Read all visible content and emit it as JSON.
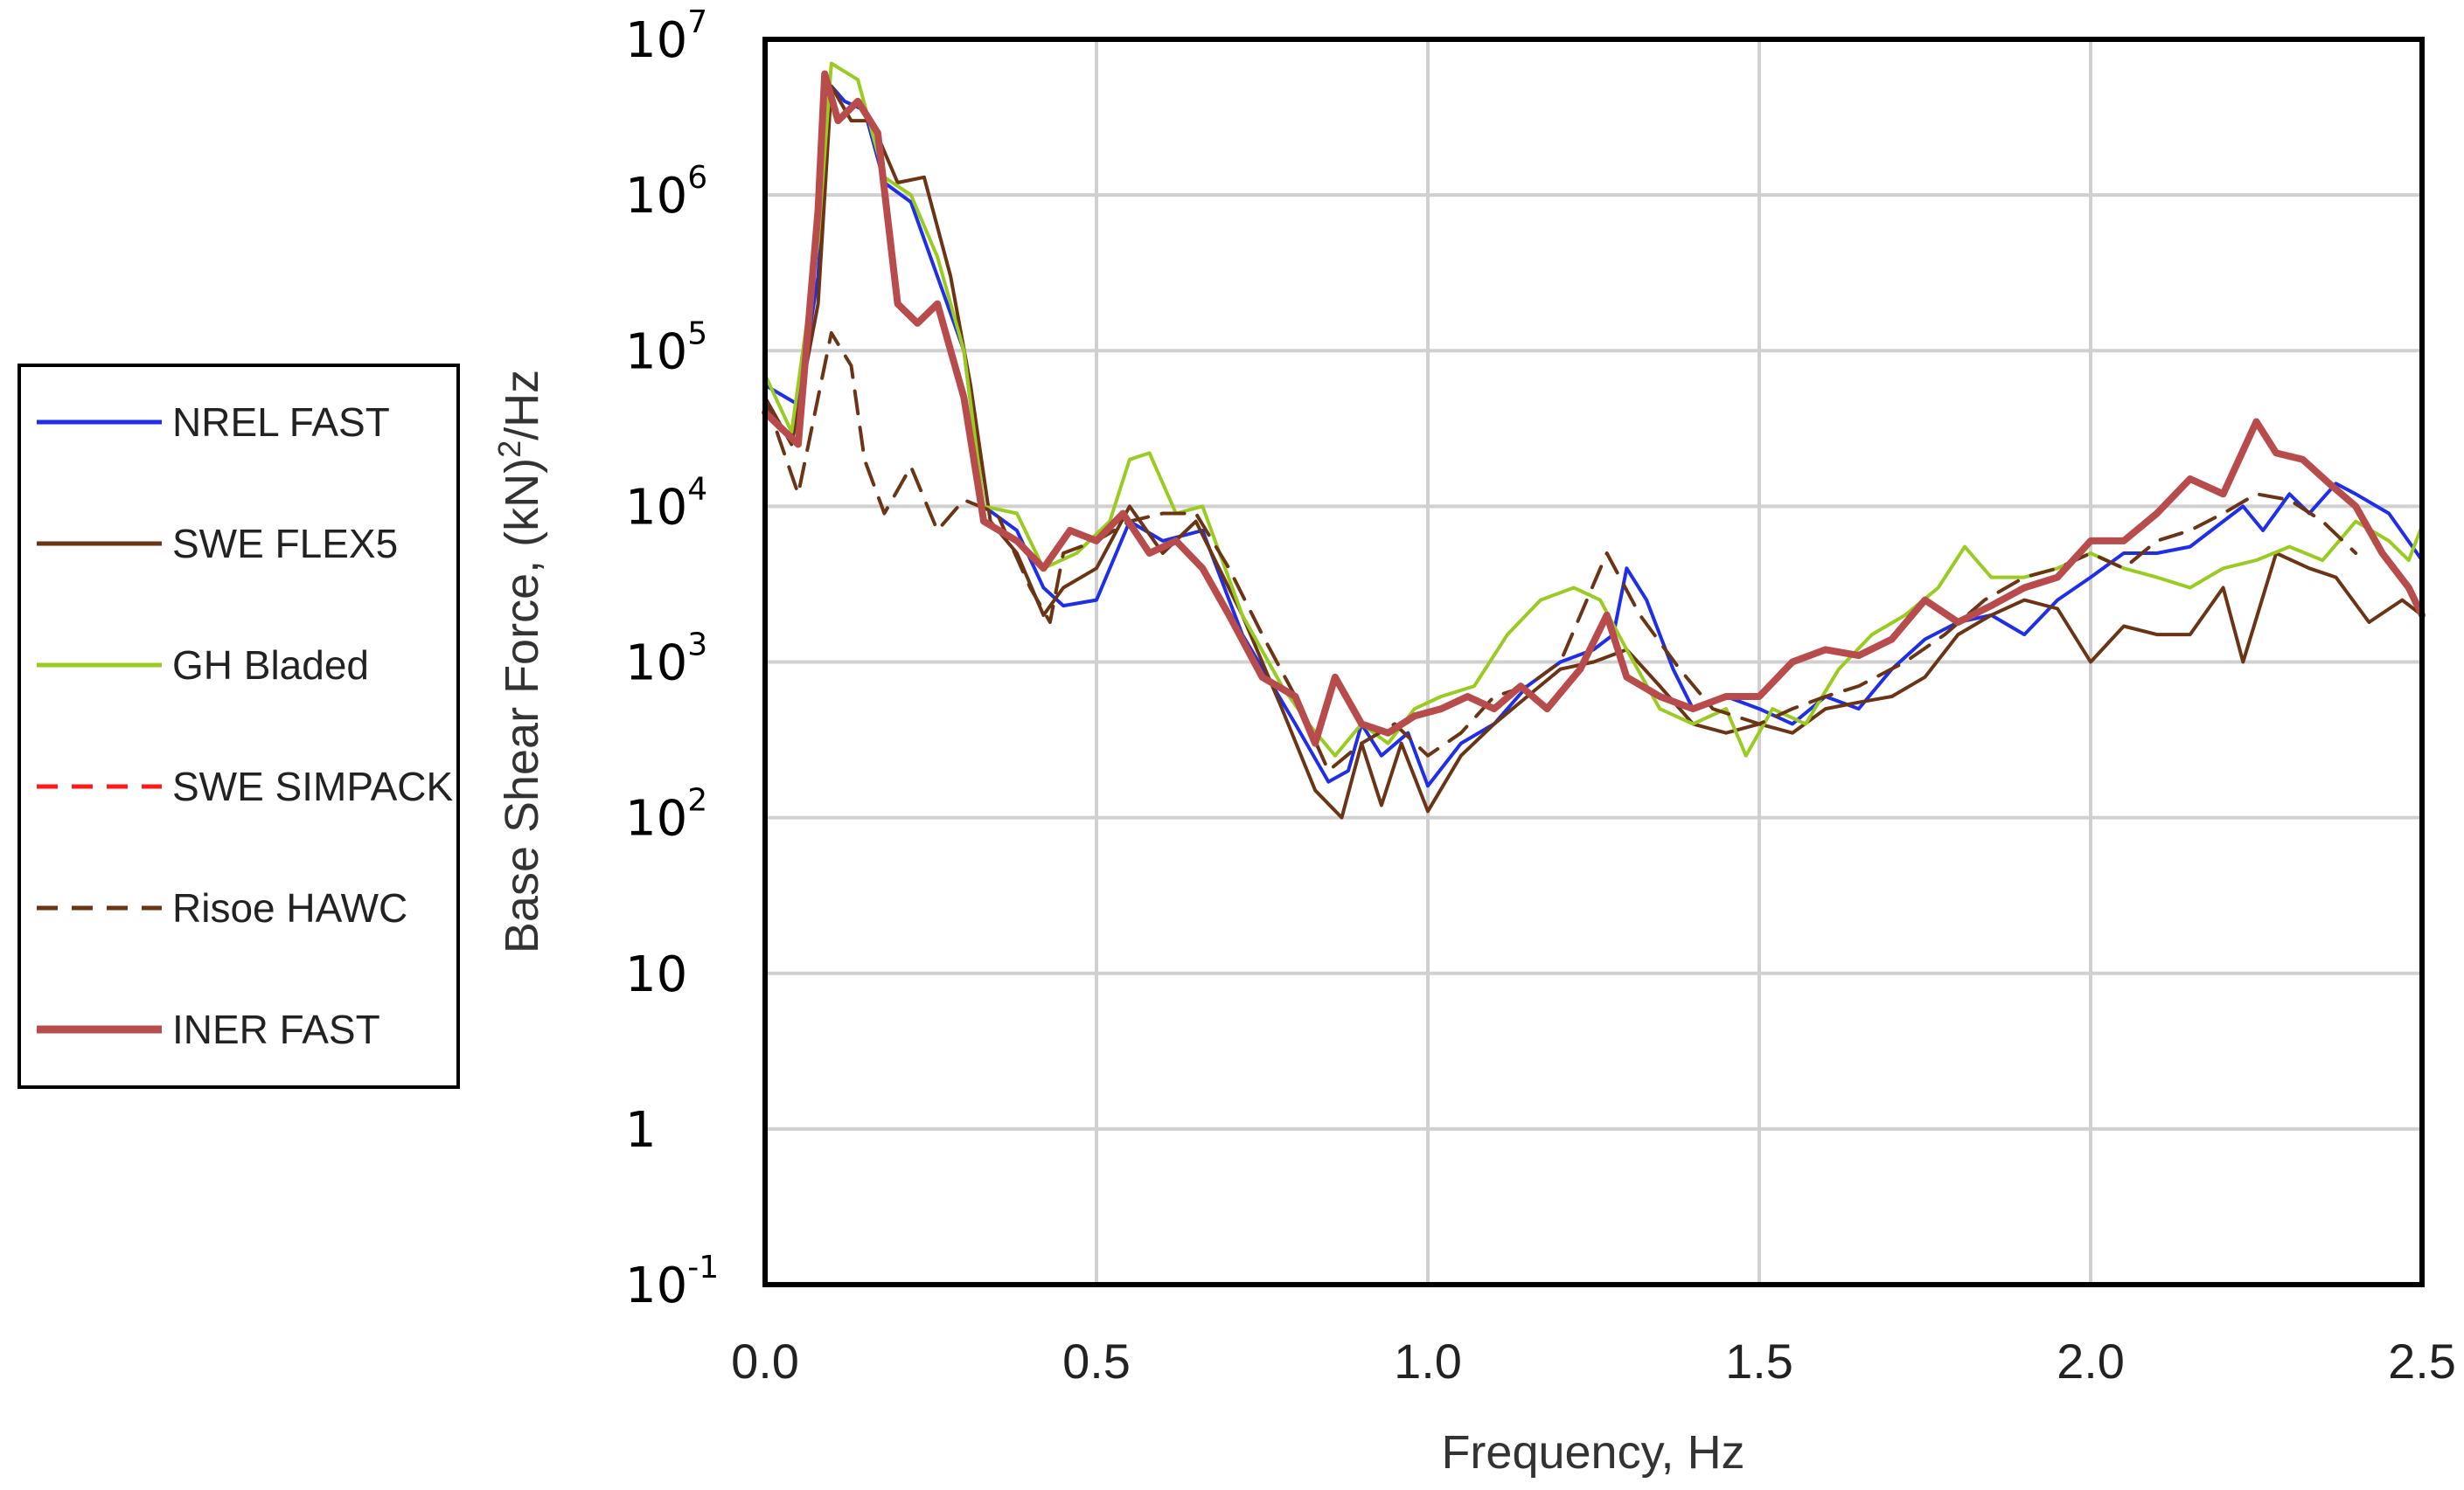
{
  "chart_data": {
    "type": "line",
    "title": "",
    "xlabel": "Frequency, Hz",
    "ylabel": "Base Shear Force, (kN)²/Hz",
    "ylabel_parts": {
      "pre": "Base Shear Force, (kN)",
      "sup": "2",
      "post": "/Hz"
    },
    "xlim": [
      0,
      2.5
    ],
    "ylim": [
      0.1,
      10000000
    ],
    "yscale": "log",
    "grid": true,
    "legend_position": "left",
    "x_ticks": [
      "0.0",
      "0.5",
      "1.0",
      "1.5",
      "2.0",
      "2.5"
    ],
    "y_ticks": [
      {
        "base": "10",
        "exp": "-1"
      },
      {
        "base": "1",
        "exp": ""
      },
      {
        "base": "10",
        "exp": ""
      },
      {
        "base": "10",
        "exp": "2"
      },
      {
        "base": "10",
        "exp": "3"
      },
      {
        "base": "10",
        "exp": "4"
      },
      {
        "base": "10",
        "exp": "5"
      },
      {
        "base": "10",
        "exp": "6"
      },
      {
        "base": "10",
        "exp": "7"
      }
    ],
    "series": [
      {
        "name": "NREL FAST",
        "color": "#1f2ee8",
        "dash": "solid",
        "width": 4,
        "points": [
          [
            0,
            60000
          ],
          [
            0.05,
            45000
          ],
          [
            0.08,
            300000
          ],
          [
            0.1,
            5000000
          ],
          [
            0.12,
            4000000
          ],
          [
            0.15,
            3500000
          ],
          [
            0.18,
            1200000
          ],
          [
            0.22,
            900000
          ],
          [
            0.26,
            300000
          ],
          [
            0.3,
            100000
          ],
          [
            0.33,
            10000
          ],
          [
            0.38,
            7000
          ],
          [
            0.42,
            3000
          ],
          [
            0.45,
            2300
          ],
          [
            0.5,
            2500
          ],
          [
            0.55,
            8000
          ],
          [
            0.6,
            6000
          ],
          [
            0.66,
            7000
          ],
          [
            0.72,
            1500
          ],
          [
            0.8,
            400
          ],
          [
            0.85,
            170
          ],
          [
            0.88,
            200
          ],
          [
            0.9,
            400
          ],
          [
            0.93,
            250
          ],
          [
            0.97,
            350
          ],
          [
            1.0,
            160
          ],
          [
            1.05,
            300
          ],
          [
            1.1,
            400
          ],
          [
            1.15,
            700
          ],
          [
            1.2,
            1000
          ],
          [
            1.25,
            1200
          ],
          [
            1.28,
            1500
          ],
          [
            1.3,
            4000
          ],
          [
            1.33,
            2500
          ],
          [
            1.37,
            900
          ],
          [
            1.4,
            500
          ],
          [
            1.45,
            600
          ],
          [
            1.5,
            500
          ],
          [
            1.55,
            400
          ],
          [
            1.6,
            600
          ],
          [
            1.65,
            500
          ],
          [
            1.7,
            900
          ],
          [
            1.75,
            1400
          ],
          [
            1.8,
            1800
          ],
          [
            1.85,
            2000
          ],
          [
            1.9,
            1500
          ],
          [
            1.95,
            2500
          ],
          [
            2.0,
            3500
          ],
          [
            2.05,
            5000
          ],
          [
            2.1,
            5000
          ],
          [
            2.15,
            5500
          ],
          [
            2.2,
            8000
          ],
          [
            2.23,
            10000
          ],
          [
            2.26,
            7000
          ],
          [
            2.3,
            12000
          ],
          [
            2.33,
            9000
          ],
          [
            2.37,
            14000
          ],
          [
            2.4,
            12000
          ],
          [
            2.45,
            9000
          ],
          [
            2.5,
            4500
          ]
        ]
      },
      {
        "name": "SWE FLEX5",
        "color": "#6b3415",
        "dash": "solid",
        "width": 4,
        "points": [
          [
            0,
            50000
          ],
          [
            0.04,
            25000
          ],
          [
            0.08,
            200000
          ],
          [
            0.1,
            5000000
          ],
          [
            0.13,
            3000000
          ],
          [
            0.16,
            3000000
          ],
          [
            0.2,
            1200000
          ],
          [
            0.24,
            1300000
          ],
          [
            0.28,
            300000
          ],
          [
            0.31,
            60000
          ],
          [
            0.34,
            8000
          ],
          [
            0.38,
            5000
          ],
          [
            0.42,
            2000
          ],
          [
            0.45,
            3000
          ],
          [
            0.5,
            4000
          ],
          [
            0.55,
            10000
          ],
          [
            0.6,
            5000
          ],
          [
            0.65,
            8000
          ],
          [
            0.72,
            2000
          ],
          [
            0.78,
            500
          ],
          [
            0.83,
            150
          ],
          [
            0.87,
            100
          ],
          [
            0.9,
            300
          ],
          [
            0.93,
            120
          ],
          [
            0.96,
            300
          ],
          [
            1.0,
            110
          ],
          [
            1.05,
            250
          ],
          [
            1.1,
            400
          ],
          [
            1.15,
            600
          ],
          [
            1.2,
            900
          ],
          [
            1.25,
            1000
          ],
          [
            1.3,
            1200
          ],
          [
            1.35,
            700
          ],
          [
            1.4,
            400
          ],
          [
            1.45,
            350
          ],
          [
            1.5,
            400
          ],
          [
            1.55,
            350
          ],
          [
            1.6,
            500
          ],
          [
            1.65,
            550
          ],
          [
            1.7,
            600
          ],
          [
            1.75,
            800
          ],
          [
            1.8,
            1500
          ],
          [
            1.85,
            2000
          ],
          [
            1.9,
            2500
          ],
          [
            1.95,
            2200
          ],
          [
            2.0,
            1000
          ],
          [
            2.05,
            1700
          ],
          [
            2.1,
            1500
          ],
          [
            2.15,
            1500
          ],
          [
            2.2,
            3000
          ],
          [
            2.23,
            1000
          ],
          [
            2.28,
            5000
          ],
          [
            2.33,
            4000
          ],
          [
            2.37,
            3500
          ],
          [
            2.42,
            1800
          ],
          [
            2.47,
            2500
          ],
          [
            2.5,
            2000
          ]
        ]
      },
      {
        "name": "GH Bladed",
        "color": "#9acb22",
        "dash": "solid",
        "width": 4,
        "points": [
          [
            0,
            70000
          ],
          [
            0.04,
            30000
          ],
          [
            0.08,
            500000
          ],
          [
            0.1,
            7000000
          ],
          [
            0.14,
            5500000
          ],
          [
            0.18,
            1300000
          ],
          [
            0.22,
            1000000
          ],
          [
            0.26,
            400000
          ],
          [
            0.3,
            100000
          ],
          [
            0.33,
            10000
          ],
          [
            0.38,
            9000
          ],
          [
            0.42,
            4000
          ],
          [
            0.47,
            5000
          ],
          [
            0.52,
            8000
          ],
          [
            0.55,
            20000
          ],
          [
            0.58,
            22000
          ],
          [
            0.62,
            9000
          ],
          [
            0.66,
            10000
          ],
          [
            0.72,
            2000
          ],
          [
            0.78,
            700
          ],
          [
            0.82,
            400
          ],
          [
            0.86,
            250
          ],
          [
            0.9,
            400
          ],
          [
            0.94,
            300
          ],
          [
            0.98,
            500
          ],
          [
            1.02,
            600
          ],
          [
            1.07,
            700
          ],
          [
            1.12,
            1500
          ],
          [
            1.17,
            2500
          ],
          [
            1.22,
            3000
          ],
          [
            1.26,
            2500
          ],
          [
            1.3,
            1200
          ],
          [
            1.35,
            500
          ],
          [
            1.4,
            400
          ],
          [
            1.45,
            500
          ],
          [
            1.48,
            250
          ],
          [
            1.52,
            500
          ],
          [
            1.57,
            400
          ],
          [
            1.62,
            900
          ],
          [
            1.67,
            1500
          ],
          [
            1.72,
            2000
          ],
          [
            1.77,
            3000
          ],
          [
            1.81,
            5500
          ],
          [
            1.85,
            3500
          ],
          [
            1.9,
            3500
          ],
          [
            1.95,
            4000
          ],
          [
            2.0,
            5000
          ],
          [
            2.05,
            4000
          ],
          [
            2.1,
            3500
          ],
          [
            2.15,
            3000
          ],
          [
            2.2,
            4000
          ],
          [
            2.25,
            4500
          ],
          [
            2.3,
            5500
          ],
          [
            2.35,
            4500
          ],
          [
            2.4,
            8000
          ],
          [
            2.45,
            6000
          ],
          [
            2.48,
            4500
          ],
          [
            2.5,
            7500
          ]
        ]
      },
      {
        "name": "SWE SIMPACK",
        "color": "#ff1a1a",
        "dash": "dashed",
        "width": 4,
        "points": []
      },
      {
        "name": "Risoe HAWC",
        "color": "#6b3415",
        "dash": "dashed",
        "width": 4,
        "points": [
          [
            0,
            50000
          ],
          [
            0.05,
            12000
          ],
          [
            0.1,
            130000
          ],
          [
            0.13,
            80000
          ],
          [
            0.15,
            20000
          ],
          [
            0.18,
            9000
          ],
          [
            0.22,
            18000
          ],
          [
            0.26,
            7000
          ],
          [
            0.3,
            11000
          ],
          [
            0.35,
            9000
          ],
          [
            0.4,
            3000
          ],
          [
            0.43,
            1800
          ],
          [
            0.45,
            5000
          ],
          [
            0.5,
            6000
          ],
          [
            0.55,
            8000
          ],
          [
            0.6,
            9000
          ],
          [
            0.65,
            9000
          ],
          [
            0.7,
            4000
          ],
          [
            0.75,
            1500
          ],
          [
            0.8,
            600
          ],
          [
            0.85,
            200
          ],
          [
            0.9,
            300
          ],
          [
            0.95,
            400
          ],
          [
            1.0,
            250
          ],
          [
            1.05,
            350
          ],
          [
            1.1,
            600
          ],
          [
            1.15,
            700
          ],
          [
            1.2,
            1000
          ],
          [
            1.27,
            5000
          ],
          [
            1.32,
            2000
          ],
          [
            1.38,
            900
          ],
          [
            1.43,
            500
          ],
          [
            1.5,
            400
          ],
          [
            1.55,
            500
          ],
          [
            1.6,
            600
          ],
          [
            1.65,
            700
          ],
          [
            1.72,
            1000
          ],
          [
            1.78,
            1500
          ],
          [
            1.84,
            2500
          ],
          [
            1.9,
            3500
          ],
          [
            1.95,
            4000
          ],
          [
            2.0,
            5000
          ],
          [
            2.05,
            4000
          ],
          [
            2.1,
            6000
          ],
          [
            2.15,
            7000
          ],
          [
            2.2,
            9000
          ],
          [
            2.25,
            12000
          ],
          [
            2.3,
            11000
          ],
          [
            2.35,
            8000
          ],
          [
            2.4,
            5000
          ]
        ]
      },
      {
        "name": "INER FAST",
        "color": "#b84c4c",
        "dash": "solid",
        "width": 8,
        "points": [
          [
            0,
            40000
          ],
          [
            0.05,
            25000
          ],
          [
            0.08,
            800000
          ],
          [
            0.09,
            6000000
          ],
          [
            0.11,
            3000000
          ],
          [
            0.14,
            4000000
          ],
          [
            0.17,
            2500000
          ],
          [
            0.2,
            200000
          ],
          [
            0.23,
            150000
          ],
          [
            0.26,
            200000
          ],
          [
            0.3,
            50000
          ],
          [
            0.33,
            8000
          ],
          [
            0.38,
            6000
          ],
          [
            0.42,
            4000
          ],
          [
            0.46,
            7000
          ],
          [
            0.5,
            6000
          ],
          [
            0.54,
            9000
          ],
          [
            0.58,
            5000
          ],
          [
            0.62,
            6000
          ],
          [
            0.66,
            4000
          ],
          [
            0.7,
            2000
          ],
          [
            0.75,
            800
          ],
          [
            0.8,
            600
          ],
          [
            0.83,
            300
          ],
          [
            0.86,
            800
          ],
          [
            0.9,
            400
          ],
          [
            0.94,
            350
          ],
          [
            0.98,
            450
          ],
          [
            1.02,
            500
          ],
          [
            1.06,
            600
          ],
          [
            1.1,
            500
          ],
          [
            1.14,
            700
          ],
          [
            1.18,
            500
          ],
          [
            1.23,
            900
          ],
          [
            1.27,
            2000
          ],
          [
            1.3,
            800
          ],
          [
            1.35,
            600
          ],
          [
            1.4,
            500
          ],
          [
            1.45,
            600
          ],
          [
            1.5,
            600
          ],
          [
            1.55,
            1000
          ],
          [
            1.6,
            1200
          ],
          [
            1.65,
            1100
          ],
          [
            1.7,
            1400
          ],
          [
            1.75,
            2500
          ],
          [
            1.8,
            1800
          ],
          [
            1.85,
            2300
          ],
          [
            1.9,
            3000
          ],
          [
            1.95,
            3500
          ],
          [
            2.0,
            6000
          ],
          [
            2.05,
            6000
          ],
          [
            2.1,
            9000
          ],
          [
            2.15,
            15000
          ],
          [
            2.2,
            12000
          ],
          [
            2.25,
            35000
          ],
          [
            2.28,
            22000
          ],
          [
            2.32,
            20000
          ],
          [
            2.36,
            14000
          ],
          [
            2.4,
            10000
          ],
          [
            2.44,
            5000
          ],
          [
            2.48,
            3000
          ],
          [
            2.5,
            2000
          ]
        ]
      }
    ]
  }
}
